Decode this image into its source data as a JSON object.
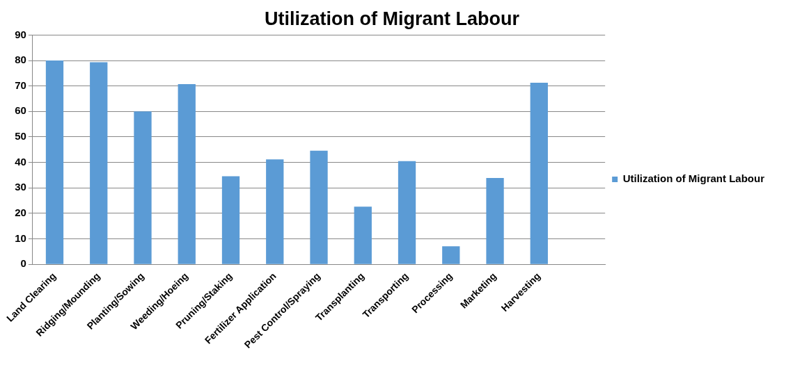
{
  "chart_data": {
    "type": "bar",
    "title": "Utilization of Migrant Labour",
    "categories": [
      "Land Clearing",
      "Ridging/Mounding",
      "Planting/Sowing",
      "Weeding/Hoeing",
      "Pruning/Staking",
      "Fertilizer Application",
      "Pest Control/Spraying",
      "Transplanting",
      "Transporting",
      "Processing",
      "Marketing",
      "Harvesting",
      null
    ],
    "series": [
      {
        "name": "Utilization of Migrant Labour",
        "color": "#5b9bd5",
        "values": [
          80,
          79.3,
          60,
          70.7,
          34.6,
          41.2,
          44.6,
          22.6,
          40.5,
          7.1,
          33.9,
          71.3,
          null
        ]
      }
    ],
    "ylim": [
      0,
      90
    ],
    "yticks": [
      0,
      10,
      20,
      30,
      40,
      50,
      60,
      70,
      80,
      90
    ],
    "grid": "y",
    "legend": "right"
  }
}
